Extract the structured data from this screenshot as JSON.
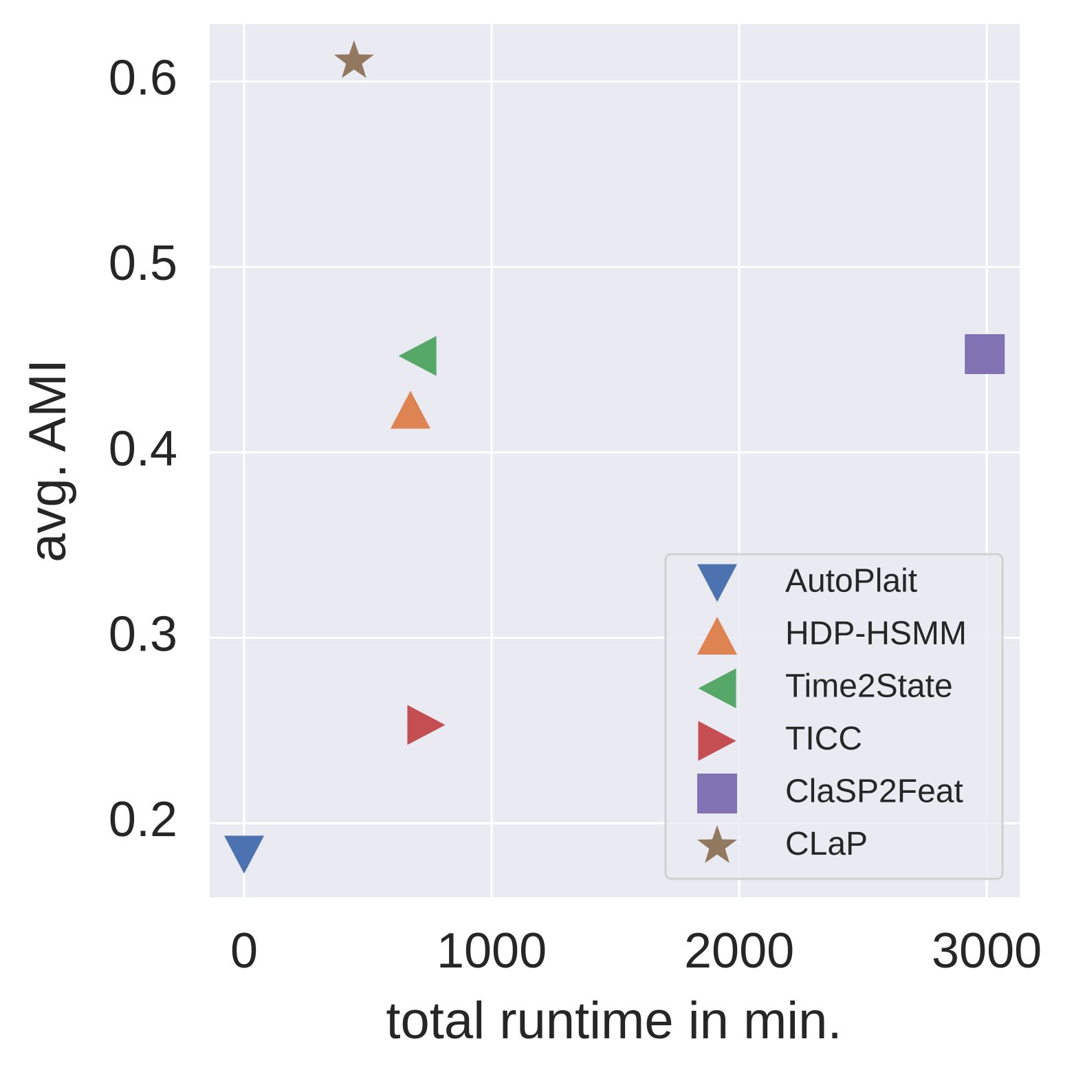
{
  "chart_data": {
    "type": "scatter",
    "x_label": "total runtime in min.",
    "y_label": "avg. AMI",
    "xlim": [
      -139,
      3133
    ],
    "xticks": [
      0,
      1000,
      2000,
      3000
    ],
    "ylim": [
      0.16,
      0.631
    ],
    "yticks": [
      0.2,
      0.3,
      0.4,
      0.5,
      0.6
    ],
    "grid": true,
    "legend": "lower right",
    "series": [
      {
        "name": "AutoPlait",
        "color": "#4c72b0",
        "marker": "triangle-down",
        "x": [
          0
        ],
        "y": [
          0.183
        ]
      },
      {
        "name": "HDP-HSMM",
        "color": "#dd8452",
        "marker": "triangle-up",
        "x": [
          672
        ],
        "y": [
          0.423
        ]
      },
      {
        "name": "Time2State",
        "color": "#55a868",
        "marker": "triangle-left",
        "x": [
          700
        ],
        "y": [
          0.452
        ]
      },
      {
        "name": "TICC",
        "color": "#c44e52",
        "marker": "triangle-right",
        "x": [
          736
        ],
        "y": [
          0.253
        ]
      },
      {
        "name": "ClaSP2Feat",
        "color": "#8172b3",
        "marker": "square",
        "x": [
          2992
        ],
        "y": [
          0.453
        ]
      },
      {
        "name": "CLaP",
        "color": "#937860",
        "marker": "star",
        "x": [
          444
        ],
        "y": [
          0.611
        ]
      }
    ]
  }
}
